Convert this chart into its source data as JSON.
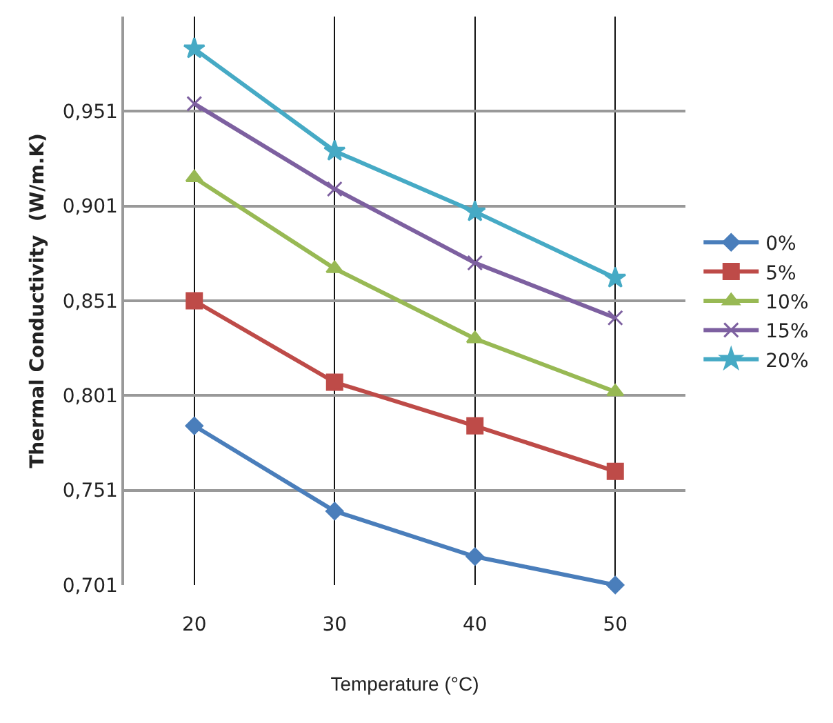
{
  "chart_data": {
    "type": "line",
    "xlabel": "Temperature (°C)",
    "ylabel": "Thermal Conductivity  (W/m.K)",
    "categories": [
      "20",
      "30",
      "40",
      "50"
    ],
    "series": [
      {
        "name": "0%",
        "color": "#4a7ebb",
        "marker": "diamond",
        "values": [
          0.785,
          0.74,
          0.716,
          0.701
        ]
      },
      {
        "name": "5%",
        "color": "#be4b48",
        "marker": "square",
        "values": [
          0.851,
          0.808,
          0.785,
          0.761
        ]
      },
      {
        "name": "10%",
        "color": "#98b954",
        "marker": "triangle",
        "values": [
          0.916,
          0.868,
          0.831,
          0.803
        ]
      },
      {
        "name": "15%",
        "color": "#7d60a0",
        "marker": "cross",
        "values": [
          0.955,
          0.91,
          0.871,
          0.842
        ]
      },
      {
        "name": "20%",
        "color": "#46aac5",
        "marker": "star",
        "values": [
          0.984,
          0.93,
          0.898,
          0.863
        ]
      }
    ],
    "ylim": [
      0.701,
      1.001
    ],
    "yticks": [
      {
        "value": 0.701,
        "label": "0,701"
      },
      {
        "value": 0.751,
        "label": "0,751"
      },
      {
        "value": 0.801,
        "label": "0,801"
      },
      {
        "value": 0.851,
        "label": "0,851"
      },
      {
        "value": 0.901,
        "label": "0,901"
      },
      {
        "value": 0.951,
        "label": "0,951"
      }
    ],
    "grid": true,
    "legend": "right"
  }
}
